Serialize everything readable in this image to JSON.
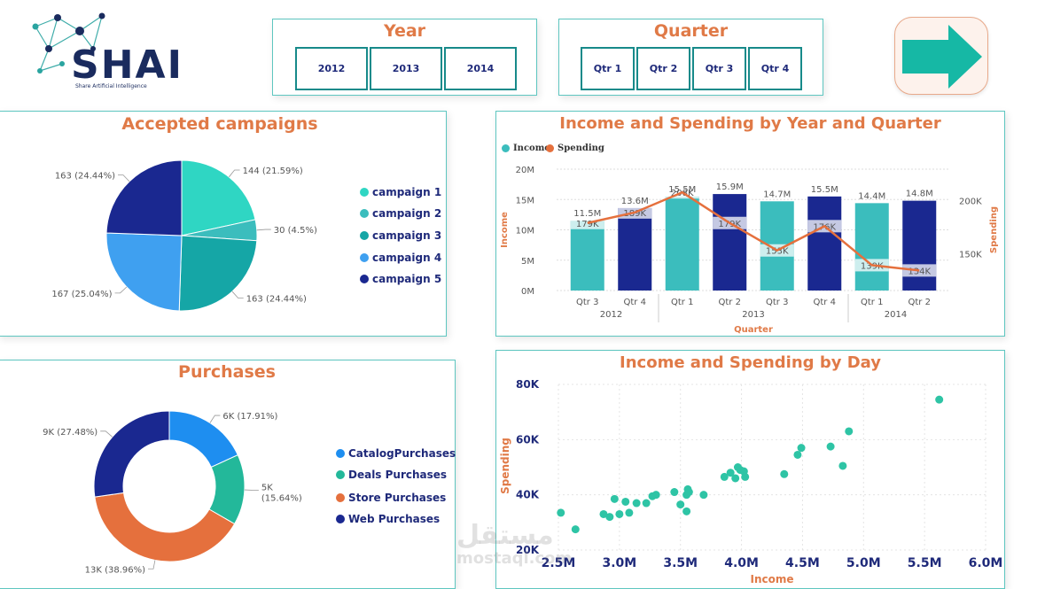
{
  "logo": {
    "text": "SHAI",
    "tagline": "Share Artificial Intelligence"
  },
  "year_slicer": {
    "title": "Year",
    "options": [
      "2012",
      "2013",
      "2014"
    ]
  },
  "quarter_slicer": {
    "title": "Quarter",
    "options": [
      "Qtr 1",
      "Qtr 2",
      "Qtr 3",
      "Qtr 4"
    ]
  },
  "colors": {
    "accent_title": "#e07a47",
    "teal_light": "#2fd6c3",
    "teal_mid": "#3bbdbd",
    "teal_dark": "#15a6a6",
    "blue_light": "#3fa0f0",
    "navy": "#1a2890",
    "orange": "#e5703d",
    "scatter": "#2ec4a5"
  },
  "campaigns": {
    "title": "Accepted campaigns",
    "legend": [
      "campaign 1",
      "campaign 2",
      "campaign 3",
      "campaign 4",
      "campaign 5"
    ]
  },
  "purchases": {
    "title": "Purchases",
    "legend": [
      "CatalogPurchases",
      "Deals Purchases",
      "Store Purchases",
      "Web Purchases"
    ]
  },
  "income_spending": {
    "title": "Income and Spending by Year and Quarter",
    "legend": [
      "Income",
      "Spending"
    ],
    "xlabel": "Quarter",
    "ylabel_left": "Income",
    "ylabel_right": "Spending"
  },
  "by_day": {
    "title": "Income and Spending by Day",
    "xlabel": "Income",
    "ylabel": "Spending"
  },
  "watermark": {
    "text": "مستقل",
    "sub": "mostaql.com"
  },
  "chart_data": [
    {
      "type": "pie",
      "title": "Accepted campaigns",
      "categories": [
        "campaign 1",
        "campaign 2",
        "campaign 3",
        "campaign 4",
        "campaign 5"
      ],
      "values": [
        144,
        30,
        163,
        167,
        163
      ],
      "labels": [
        "144 (21.59%)",
        "30 (4.5%)",
        "163 (24.44%)",
        "167 (25.04%)",
        "163 (24.44%)"
      ],
      "colors": [
        "#2fd6c3",
        "#3bbdbd",
        "#15a6a6",
        "#3fa0f0",
        "#1a2890"
      ],
      "legend": "right"
    },
    {
      "type": "pie",
      "title": "Purchases",
      "categories": [
        "CatalogPurchases",
        "Deals Purchases",
        "Store Purchases",
        "Web Purchases"
      ],
      "values": [
        6,
        5,
        13,
        9
      ],
      "labels": [
        "6K (17.91%)",
        "5K (15.64%)",
        "13K (38.96%)",
        "9K (27.48%)"
      ],
      "colors": [
        "#1e8ef0",
        "#23b89a",
        "#e5703d",
        "#1a2890"
      ],
      "donut": true,
      "legend": "right"
    },
    {
      "type": "bar",
      "title": "Income and Spending by Year and Quarter",
      "categories": [
        "Qtr 3",
        "Qtr 4",
        "Qtr 1",
        "Qtr 2",
        "Qtr 3",
        "Qtr 4",
        "Qtr 1",
        "Qtr 2"
      ],
      "groups": [
        "2012",
        "2013",
        "2014"
      ],
      "group_spans": [
        [
          0,
          1
        ],
        [
          2,
          5
        ],
        [
          6,
          7
        ]
      ],
      "bar_labels": [
        "11.5M",
        "13.6M",
        "15.5M",
        "15.9M",
        "14.7M",
        "15.5M",
        "14.4M",
        "14.8M"
      ],
      "series": [
        {
          "name": "Income",
          "values": [
            11.5,
            13.6,
            15.5,
            15.9,
            14.7,
            15.5,
            14.4,
            14.8
          ]
        },
        {
          "name": "Spending",
          "values": [
            179,
            189,
            208,
            179,
            153,
            176,
            139,
            134
          ],
          "labels": [
            "179K",
            "189K",
            "208K",
            "179K",
            "153K",
            "176K",
            "139K",
            "134K"
          ]
        }
      ],
      "bar_colors": [
        "#3bbdbd",
        "#1a2890",
        "#3bbdbd",
        "#1a2890",
        "#3bbdbd",
        "#1a2890",
        "#3bbdbd",
        "#1a2890"
      ],
      "ylim": [
        0,
        20
      ],
      "y_ticks": [
        "0M",
        "5M",
        "10M",
        "15M",
        "20M"
      ],
      "y2lim": [
        115,
        230
      ],
      "y2_ticks": [
        "150K",
        "200K"
      ],
      "xlabel": "Quarter",
      "ylabel": "Income",
      "y2label": "Spending",
      "legend": "top-left"
    },
    {
      "type": "scatter",
      "title": "Income and Spending by Day",
      "xlabel": "Income",
      "ylabel": "Spending",
      "xlim": [
        2.5,
        6.0
      ],
      "ylim": [
        20,
        80
      ],
      "x_ticks": [
        "2.5M",
        "3.0M",
        "3.5M",
        "4.0M",
        "4.5M",
        "5.0M",
        "5.5M",
        "6.0M"
      ],
      "y_ticks": [
        "20K",
        "40K",
        "60K",
        "80K"
      ],
      "x": [
        2.52,
        2.64,
        2.87,
        2.92,
        2.96,
        3.0,
        3.05,
        3.08,
        3.14,
        3.22,
        3.27,
        3.3,
        3.45,
        3.5,
        3.55,
        3.56,
        3.57,
        3.55,
        3.69,
        3.86,
        3.91,
        3.95,
        3.97,
        3.99,
        4.02,
        4.03,
        4.35,
        4.46,
        4.49,
        4.73,
        4.83,
        4.88,
        5.62
      ],
      "y": [
        33.5,
        27.5,
        33,
        32,
        38.5,
        33,
        37.5,
        33.5,
        37,
        37,
        39.5,
        40,
        41,
        36.5,
        40,
        42,
        41,
        34,
        40,
        46.5,
        48,
        46,
        50,
        49,
        48.5,
        46.5,
        47.5,
        54.5,
        57,
        57.5,
        50.5,
        63,
        74.5
      ],
      "legend": "none"
    }
  ]
}
